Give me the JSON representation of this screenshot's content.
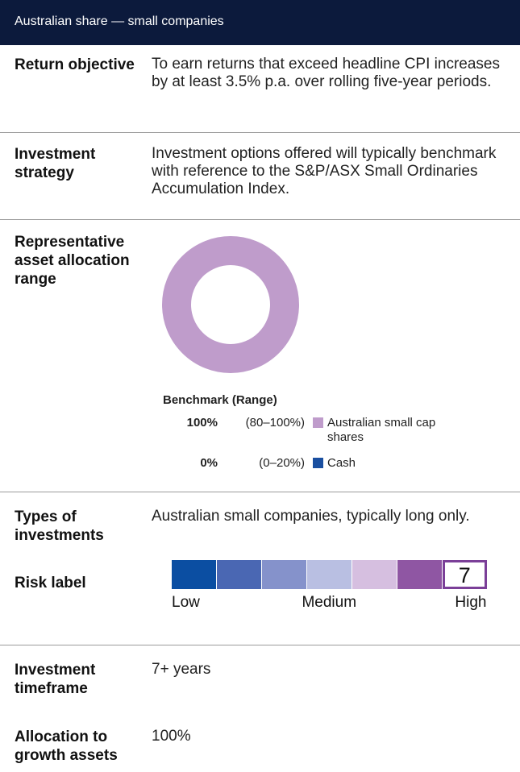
{
  "header": {
    "title": "Australian share — small companies"
  },
  "rows": [
    {
      "label": "Return objective",
      "text": "To earn returns that exceed headline CPI increases by at least 3.5% p.a. over rolling five-year periods."
    },
    {
      "label": "Investment strategy",
      "text": "Investment options offered will typically benchmark with reference to the S&P/ASX Small Ordinaries Accumulation Index."
    }
  ],
  "allocation": {
    "label": "Representative asset allocation range"
  },
  "chart_data": {
    "type": "pie",
    "legend_title": "Benchmark (Range)",
    "categories": [
      "Australian small cap shares",
      "Cash"
    ],
    "values": [
      100,
      0
    ],
    "value_labels": [
      "100%",
      "0%"
    ],
    "ranges": [
      "(80–100%)",
      "(0–20%)"
    ],
    "colors": [
      "#bf9ccb",
      "#1a4fa0"
    ]
  },
  "types": {
    "label": "Types of investments",
    "text": "Australian small companies, typically long only."
  },
  "risk": {
    "label": "Risk label",
    "level": 7,
    "scale_labels": [
      "Low",
      "Medium",
      "High"
    ],
    "colors": [
      "#0b4ea2",
      "#4a67b3",
      "#8592cb",
      "#b9bfe2",
      "#d6bfe0",
      "#8f56a3",
      "#7b3f98"
    ]
  },
  "timeframe": {
    "label": "Investment timeframe",
    "text": "7+ years"
  },
  "growth": {
    "label": "Allocation to growth assets",
    "text": "100%"
  }
}
